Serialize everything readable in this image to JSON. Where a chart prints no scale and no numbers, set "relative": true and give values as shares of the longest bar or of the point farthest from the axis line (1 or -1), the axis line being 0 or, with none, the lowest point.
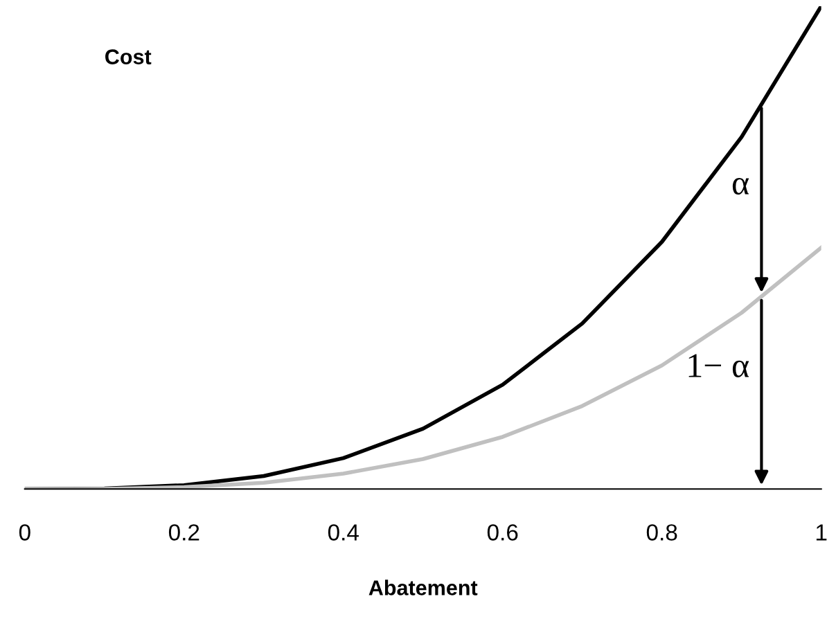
{
  "chart_data": {
    "type": "line",
    "relative": true,
    "xlabel": "Abatement",
    "ylabel": "Cost",
    "xlim": [
      0,
      1
    ],
    "xticks": [
      0,
      0.2,
      0.4,
      0.6,
      0.8,
      1
    ],
    "x": [
      0,
      0.1,
      0.2,
      0.3,
      0.4,
      0.5,
      0.6,
      0.7,
      0.8,
      0.9,
      1
    ],
    "series": [
      {
        "color": "#000000",
        "values": [
          0,
          0.001,
          0.008,
          0.027,
          0.064,
          0.125,
          0.216,
          0.343,
          0.512,
          0.729,
          1
        ]
      },
      {
        "color": "#c0c0c0",
        "values": [
          0,
          0.0005,
          0.004,
          0.013,
          0.032,
          0.062,
          0.108,
          0.172,
          0.256,
          0.365,
          0.5
        ]
      }
    ],
    "annotations": [
      "α",
      "1− α"
    ],
    "grid": false,
    "legend": false,
    "marker": "none",
    "line_style": "solid"
  }
}
